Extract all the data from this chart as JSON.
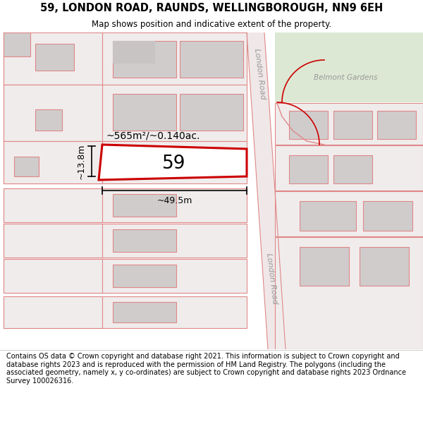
{
  "title_line1": "59, LONDON ROAD, RAUNDS, WELLINGBOROUGH, NN9 6EH",
  "title_line2": "Map shows position and indicative extent of the property.",
  "footer_text": "Contains OS data © Crown copyright and database right 2021. This information is subject to Crown copyright and database rights 2023 and is reproduced with the permission of HM Land Registry. The polygons (including the associated geometry, namely x, y co-ordinates) are subject to Crown copyright and database rights 2023 Ordnance Survey 100026316.",
  "background_color": "#ffffff",
  "map_bg": "#f5f2f0",
  "label_area": "~565m²/~0.140ac.",
  "label_width": "~49.5m",
  "label_height": "~13.8m",
  "label_number": "59",
  "label_road_upper": "London Road",
  "label_road_lower": "London Road",
  "label_belmont": "Belmont Gardens",
  "highlight_color": "#cc0000",
  "plot_border": "#e08888",
  "grey_building": "#d0cccc",
  "grey_building2": "#c8c4c4",
  "plot_fill": "#f0ecec",
  "road_fill": "#f5efef",
  "green_fill": "#dce8d4"
}
